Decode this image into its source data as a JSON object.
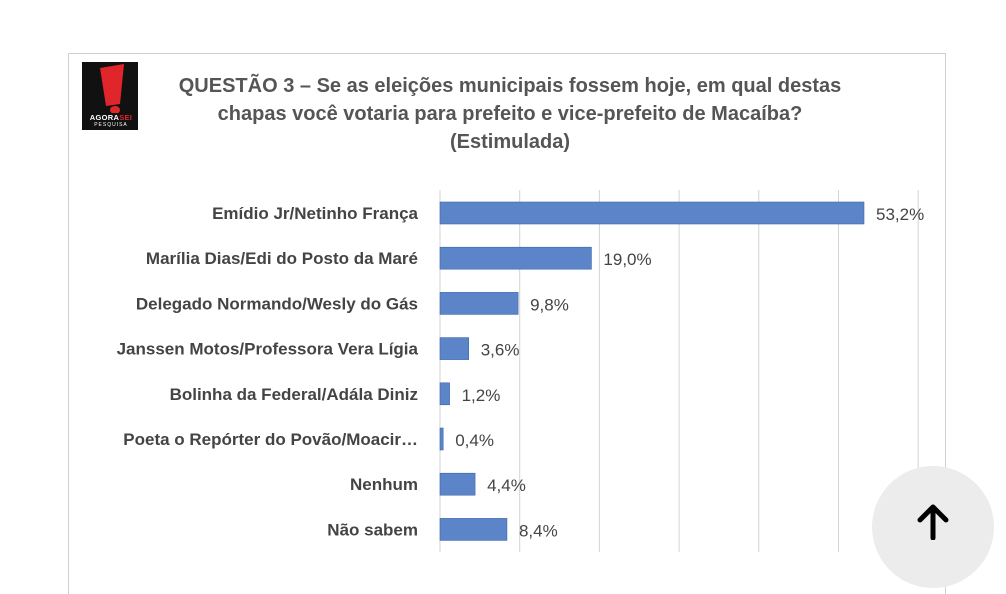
{
  "logo": {
    "text_main": "AGORA",
    "text_accent": "SEI",
    "subtext": "PESQUISA"
  },
  "title": {
    "line1": "QUESTÃO 3 – Se as eleições municipais fossem hoje, em qual destas",
    "line2": "chapas você votaria para prefeito e vice-prefeito de Macaíba?",
    "line3": "(Estimulada)"
  },
  "colors": {
    "bar": "#5b85c8",
    "grid": "#d4d4d4",
    "label": "#444444"
  },
  "chart_data": {
    "type": "bar",
    "orientation": "horizontal",
    "categories": [
      "Emídio Jr/Netinho França",
      "Marília Dias/Edi do Posto da Maré",
      "Delegado Normando/Wesly do Gás",
      "Janssen Motos/Professora Vera Lígia",
      "Bolinha da Federal/Adála Diniz",
      "Poeta o Repórter do Povão/Moacir…",
      "Nenhum",
      "Não sabem"
    ],
    "values": [
      53.2,
      19.0,
      9.8,
      3.6,
      1.2,
      0.4,
      4.4,
      8.4
    ],
    "data_labels": [
      "53,2%",
      "19,0%",
      "9,8%",
      "3,6%",
      "1,2%",
      "0,4%",
      "4,4%",
      "8,4%"
    ],
    "xlim": [
      0,
      60
    ],
    "grid": true
  },
  "scroll_button": {
    "icon": "arrow-up-icon"
  }
}
